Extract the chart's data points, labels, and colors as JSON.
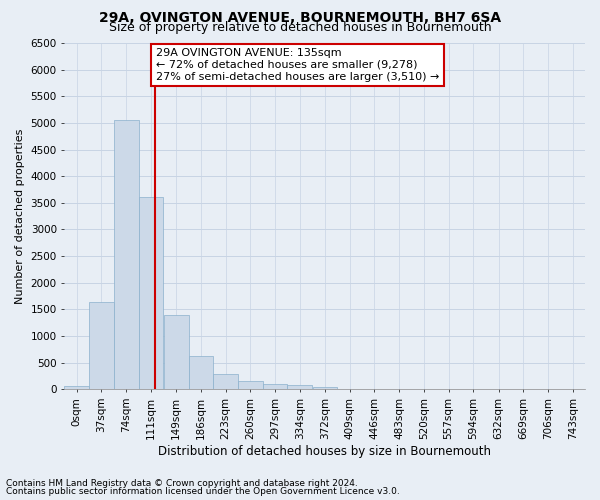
{
  "title1": "29A, OVINGTON AVENUE, BOURNEMOUTH, BH7 6SA",
  "title2": "Size of property relative to detached houses in Bournemouth",
  "xlabel": "Distribution of detached houses by size in Bournemouth",
  "ylabel": "Number of detached properties",
  "bar_color": "#ccd9e8",
  "bar_edge_color": "#8ab0cc",
  "grid_color": "#c8d4e4",
  "vline_color": "#cc0000",
  "vline_x": 135,
  "categories": [
    "0sqm",
    "37sqm",
    "74sqm",
    "111sqm",
    "149sqm",
    "186sqm",
    "223sqm",
    "260sqm",
    "297sqm",
    "334sqm",
    "372sqm",
    "409sqm",
    "446sqm",
    "483sqm",
    "520sqm",
    "557sqm",
    "594sqm",
    "632sqm",
    "669sqm",
    "706sqm",
    "743sqm"
  ],
  "bin_edges": [
    0,
    37,
    74,
    111,
    149,
    186,
    223,
    260,
    297,
    334,
    372,
    409,
    446,
    483,
    520,
    557,
    594,
    632,
    669,
    706,
    743
  ],
  "bar_heights": [
    65,
    1630,
    5060,
    3600,
    1400,
    620,
    290,
    145,
    100,
    75,
    45,
    0,
    0,
    0,
    0,
    0,
    0,
    0,
    0,
    0
  ],
  "ylim": [
    0,
    6500
  ],
  "yticks": [
    0,
    500,
    1000,
    1500,
    2000,
    2500,
    3000,
    3500,
    4000,
    4500,
    5000,
    5500,
    6000,
    6500
  ],
  "annotation_text": "29A OVINGTON AVENUE: 135sqm\n← 72% of detached houses are smaller (9,278)\n27% of semi-detached houses are larger (3,510) →",
  "annotation_box_color": "#ffffff",
  "annotation_border_color": "#cc0000",
  "footnote1": "Contains HM Land Registry data © Crown copyright and database right 2024.",
  "footnote2": "Contains public sector information licensed under the Open Government Licence v3.0.",
  "background_color": "#e8eef5",
  "title1_fontsize": 10,
  "title2_fontsize": 9,
  "xlabel_fontsize": 8.5,
  "ylabel_fontsize": 8,
  "tick_fontsize": 7.5,
  "annotation_fontsize": 8,
  "footnote_fontsize": 6.5
}
